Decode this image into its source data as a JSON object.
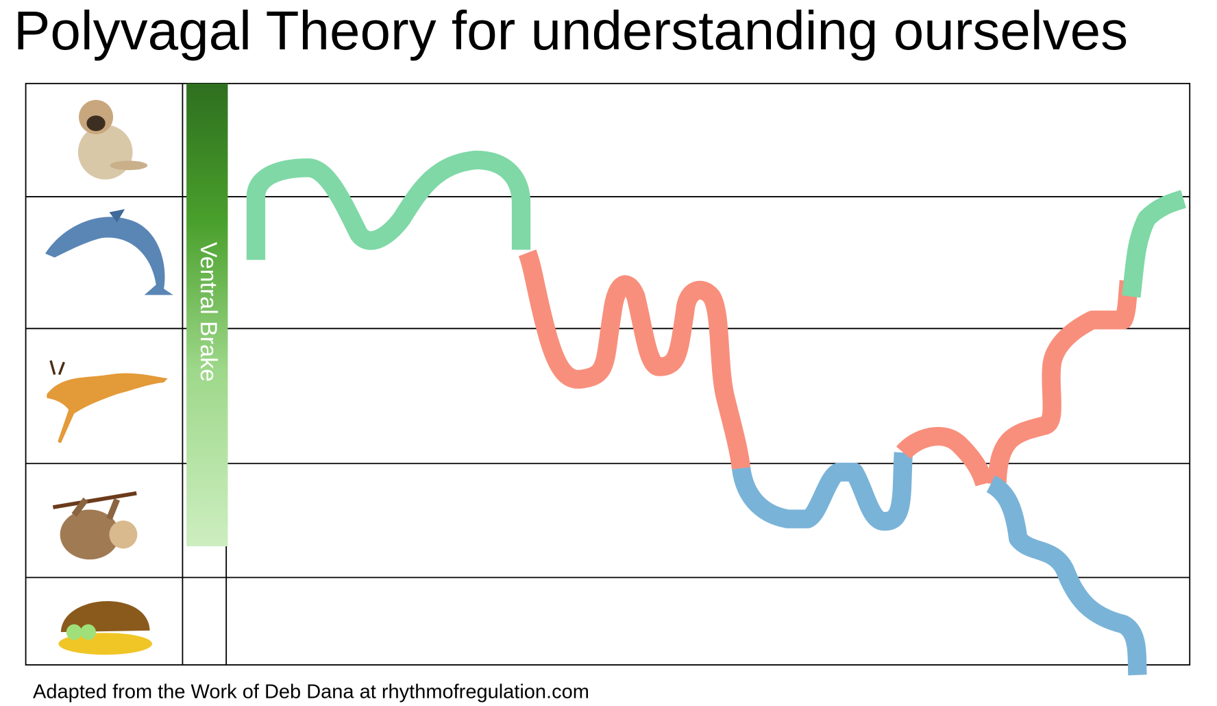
{
  "header": {
    "title": "Polyvagal Theory for understanding ourselves"
  },
  "brake": {
    "label": "Ventral Brake"
  },
  "footer": {
    "credit": "Adapted from the Work of Deb Dana at rhythmofregulation.com"
  }
}
